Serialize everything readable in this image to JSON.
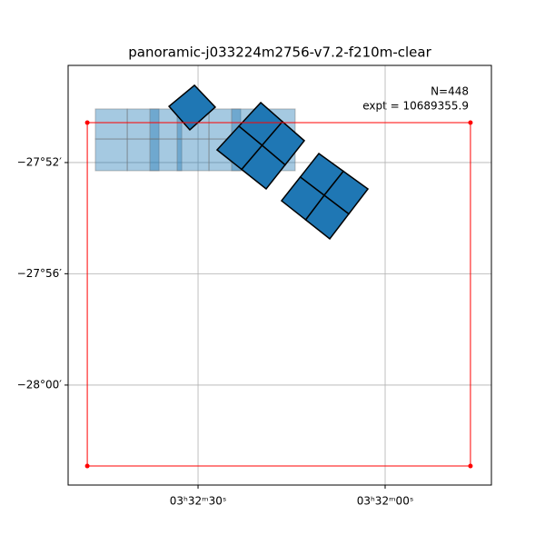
{
  "chart_data": {
    "type": "polygon",
    "title": "panoramic-j033224m2756-v7.2-f210m-clear",
    "annotations": [
      "N=448",
      "expt = 10689355.9"
    ],
    "xlim": [
      53.2118,
      52.929
    ],
    "ylim": [
      -28.0599,
      -27.8085
    ],
    "xticks": [
      {
        "value": 53.125,
        "label": "03ʰ32ᵐ30ˢ"
      },
      {
        "value": 53.0,
        "label": "03ʰ32ᵐ00ˢ"
      }
    ],
    "yticks": [
      {
        "value": -27.8667,
        "label": "−27°52′"
      },
      {
        "value": -27.9333,
        "label": "−27°56′"
      },
      {
        "value": -28.0,
        "label": "−28°00′"
      }
    ],
    "grid": true,
    "tile_color": "#1f77b4",
    "tile_opacity": 0.4,
    "tiles": [
      {
        "x": [
          53.1936,
          53.1723
        ],
        "y": [
          -27.8346,
          -27.8526
        ]
      },
      {
        "x": [
          53.1723,
          53.1511
        ],
        "y": [
          -27.8346,
          -27.8526
        ]
      },
      {
        "x": [
          53.1572,
          53.1359
        ],
        "y": [
          -27.8346,
          -27.8526
        ]
      },
      {
        "x": [
          53.139,
          53.1177
        ],
        "y": [
          -27.8346,
          -27.8526
        ]
      },
      {
        "x": [
          53.1177,
          53.0965
        ],
        "y": [
          -27.8346,
          -27.8526
        ]
      },
      {
        "x": [
          53.1026,
          53.0813
        ],
        "y": [
          -27.8346,
          -27.8526
        ]
      },
      {
        "x": [
          53.0813,
          53.0601
        ],
        "y": [
          -27.8346,
          -27.8526
        ]
      },
      {
        "x": [
          53.1936,
          53.1723
        ],
        "y": [
          -27.8526,
          -27.8716
        ]
      },
      {
        "x": [
          53.1723,
          53.1511
        ],
        "y": [
          -27.8526,
          -27.8716
        ]
      },
      {
        "x": [
          53.1572,
          53.1359
        ],
        "y": [
          -27.8526,
          -27.8716
        ]
      },
      {
        "x": [
          53.139,
          53.1177
        ],
        "y": [
          -27.8526,
          -27.8716
        ]
      },
      {
        "x": [
          53.1177,
          53.0965
        ],
        "y": [
          -27.8526,
          -27.8716
        ]
      },
      {
        "x": [
          53.1026,
          53.0813
        ],
        "y": [
          -27.8526,
          -27.8716
        ]
      },
      {
        "x": [
          53.0813,
          53.0601
        ],
        "y": [
          -27.8526,
          -27.8716
        ]
      }
    ],
    "footprint_color": "#1f77b4",
    "footprints": [
      {
        "x": [
          53.1274,
          53.1135,
          53.1305,
          53.1444
        ],
        "y": [
          -27.8204,
          -27.8335,
          -27.8471,
          -27.833
        ]
      },
      {
        "x": [
          53.0831,
          53.0686,
          53.0822,
          53.0977
        ],
        "y": [
          -27.8308,
          -27.8422,
          -27.8564,
          -27.8449
        ]
      },
      {
        "x": [
          53.0686,
          53.054,
          53.0668,
          53.0822
        ],
        "y": [
          -27.8422,
          -27.8536,
          -27.8681,
          -27.8564
        ]
      },
      {
        "x": [
          53.0822,
          53.0668,
          53.0795,
          53.0959
        ],
        "y": [
          -27.8564,
          -27.8681,
          -27.8825,
          -27.8708
        ]
      },
      {
        "x": [
          53.0977,
          53.0822,
          53.0959,
          53.1123
        ],
        "y": [
          -27.8449,
          -27.8564,
          -27.8708,
          -27.8591
        ]
      },
      {
        "x": [
          53.0443,
          53.0279,
          53.0407,
          53.0567
        ],
        "y": [
          -27.8613,
          -27.8719,
          -27.8863,
          -27.8754
        ]
      },
      {
        "x": [
          53.0279,
          53.0115,
          53.0243,
          53.0407
        ],
        "y": [
          -27.8719,
          -27.8825,
          -27.8975,
          -27.8863
        ]
      },
      {
        "x": [
          53.0407,
          53.0243,
          53.037,
          53.0531
        ],
        "y": [
          -27.8863,
          -27.8975,
          -27.9124,
          -27.901
        ]
      },
      {
        "x": [
          53.0567,
          53.0407,
          53.0531,
          53.0692
        ],
        "y": [
          -27.8754,
          -27.8863,
          -27.901,
          -27.8896
        ]
      }
    ],
    "outline": {
      "color": "#ff0000",
      "x": [
        53.199,
        52.943,
        52.943,
        53.199
      ],
      "y": [
        -27.8428,
        -27.8428,
        -28.0485,
        -28.0485
      ]
    }
  }
}
